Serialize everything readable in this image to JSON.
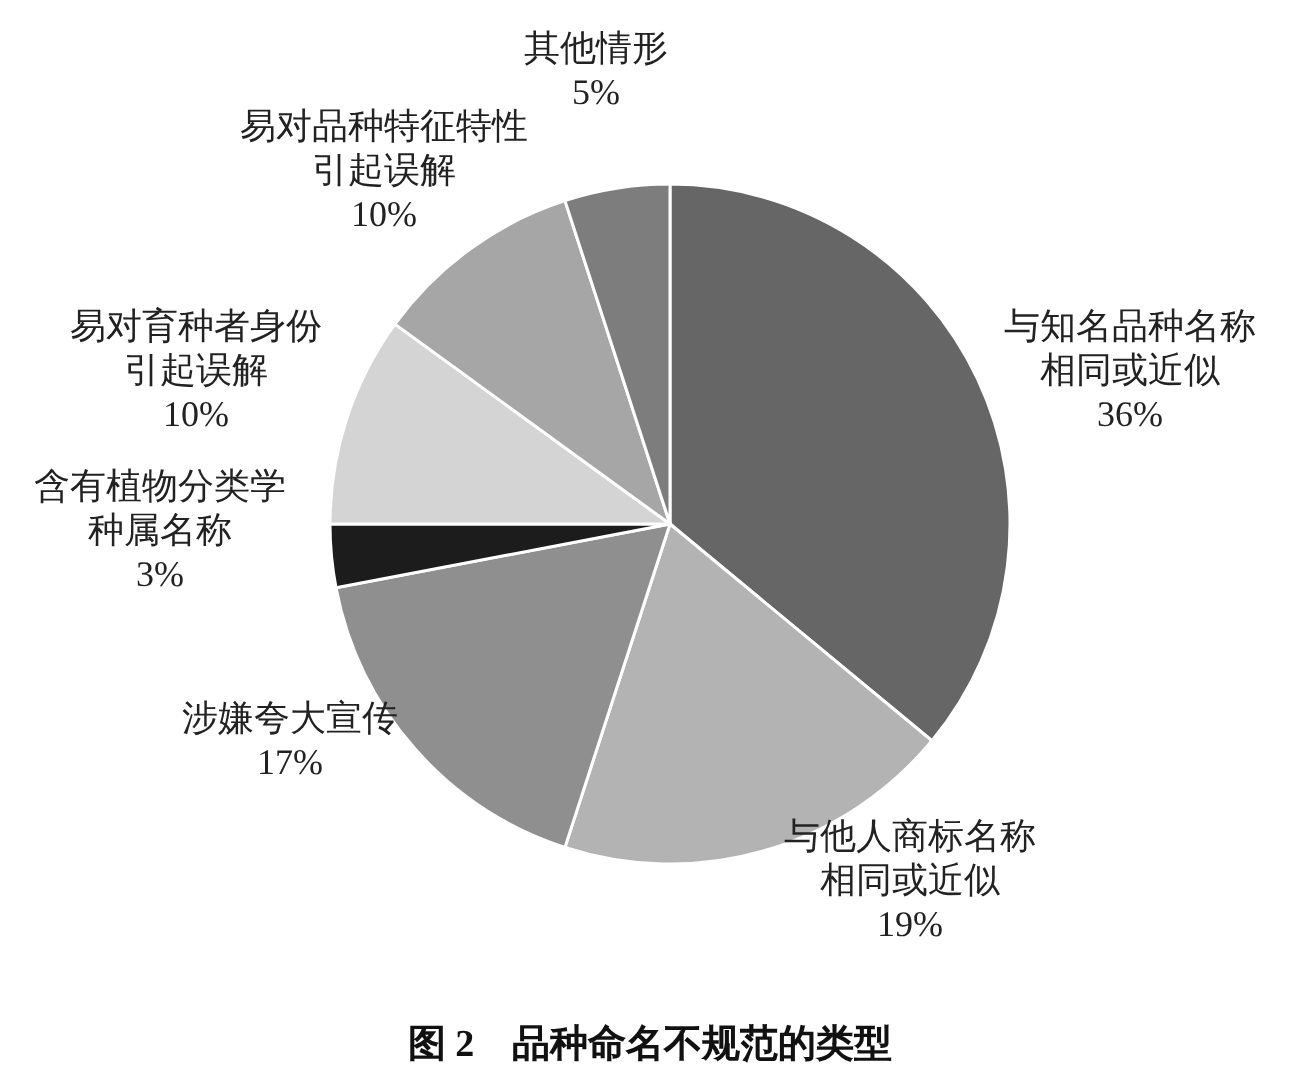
{
  "chart_data": {
    "type": "pie",
    "title": "图 2　品种命名不规范的类型",
    "categories": [
      "与知名品种名称相同或近似",
      "与他人商标名称相同或近似",
      "涉嫌夸大宣传",
      "含有植物分类学种属名称",
      "易对育种者身份引起误解",
      "易对品种特征特性引起误解",
      "其他情形"
    ],
    "values": [
      36,
      19,
      17,
      3,
      10,
      10,
      5
    ],
    "value_labels": [
      "36%",
      "19%",
      "17%",
      "3%",
      "10%",
      "10%",
      "5%"
    ],
    "colors": [
      "#666666",
      "#b3b3b3",
      "#8f8f8f",
      "#1c1c1c",
      "#d4d4d4",
      "#a6a6a6",
      "#7d7d7d"
    ]
  }
}
